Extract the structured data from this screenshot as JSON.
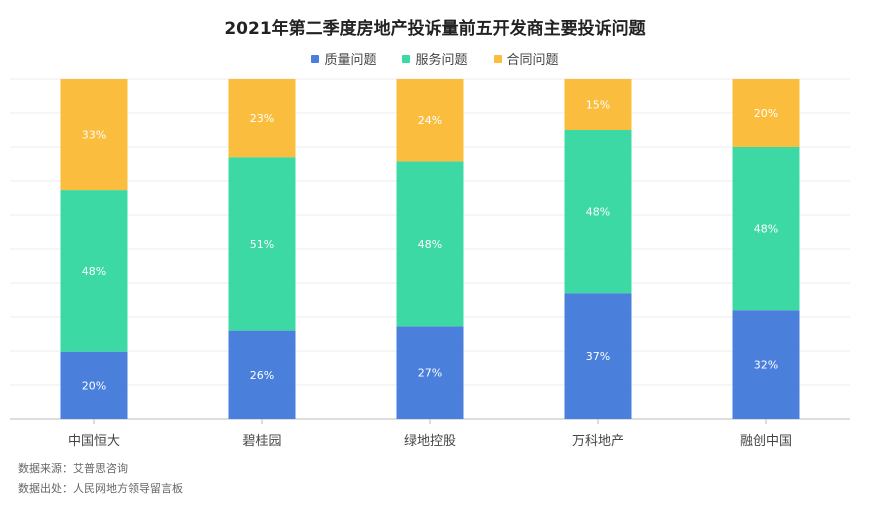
{
  "chart_data": {
    "type": "bar",
    "stacked": true,
    "title": "2021年第二季度房地产投诉量前五开发商主要投诉问题",
    "categories": [
      "中国恒大",
      "碧桂园",
      "绿地控股",
      "万科地产",
      "融创中国"
    ],
    "series": [
      {
        "name": "质量问题",
        "color": "#4a7fdc",
        "values": [
          20,
          26,
          27,
          37,
          32
        ],
        "labels": [
          "20%",
          "26%",
          "27%",
          "37%",
          "32%"
        ]
      },
      {
        "name": "服务问题",
        "color": "#3dd9a5",
        "values": [
          48,
          51,
          48,
          48,
          48
        ],
        "labels": [
          "48%",
          "51%",
          "48%",
          "48%",
          "48%"
        ]
      },
      {
        "name": "合同问题",
        "color": "#fbbd3d",
        "values": [
          33,
          23,
          24,
          15,
          20
        ],
        "labels": [
          "33%",
          "23%",
          "24%",
          "15%",
          "20%"
        ]
      }
    ],
    "ylim": [
      0,
      100
    ],
    "legend_position": "top",
    "grid": true
  },
  "footnotes": {
    "source": "数据来源：艾普思咨询",
    "origin": "数据出处：人民网地方领导留言板"
  }
}
